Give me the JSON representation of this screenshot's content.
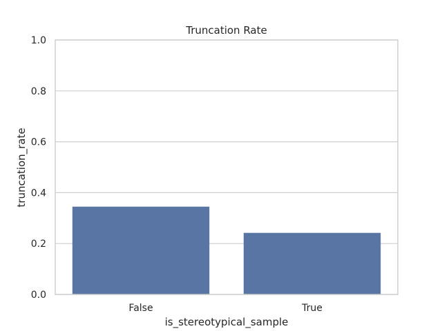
{
  "chart_data": {
    "type": "bar",
    "title": "Truncation Rate",
    "xlabel": "is_stereotypical_sample",
    "ylabel": "truncation_rate",
    "categories": [
      "False",
      "True"
    ],
    "values": [
      0.345,
      0.242
    ],
    "ylim": [
      0,
      1.0
    ],
    "yticks": [
      "0.0",
      "0.2",
      "0.4",
      "0.6",
      "0.8",
      "1.0"
    ],
    "grid": true,
    "bar_color": "#5875a4"
  }
}
